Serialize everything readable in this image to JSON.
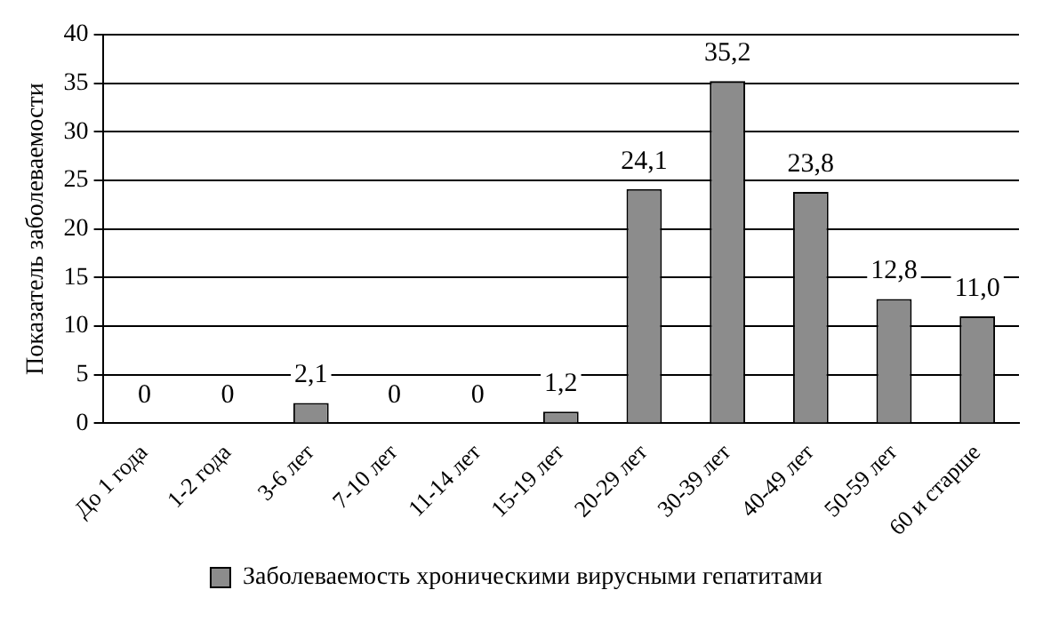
{
  "chart_data": {
    "type": "bar",
    "ylabel": "Показатель заболеваемости",
    "categories": [
      "До 1 года",
      "1-2 года",
      "3-6 лет",
      "7-10 лет",
      "11-14 лет",
      "15-19 лет",
      "20-29 лет",
      "30-39 лет",
      "40-49 лет",
      "50-59 лет",
      "60 и старше"
    ],
    "series": [
      {
        "name": "Заболеваемость хроническими вирусными гепатитами",
        "color": "#8c8c8c",
        "values": [
          0,
          0,
          2.1,
          0,
          0,
          1.2,
          24.1,
          35.2,
          23.8,
          12.8,
          11.0
        ],
        "value_labels": [
          "0",
          "0",
          "2,1",
          "0",
          "0",
          "1,2",
          "24,1",
          "35,2",
          "23,8",
          "12,8",
          "11,0"
        ]
      }
    ],
    "ylim": [
      0,
      40
    ],
    "yticks": [
      0,
      5,
      10,
      15,
      20,
      25,
      30,
      35,
      40
    ],
    "grid": "y",
    "legend": "bottom"
  }
}
